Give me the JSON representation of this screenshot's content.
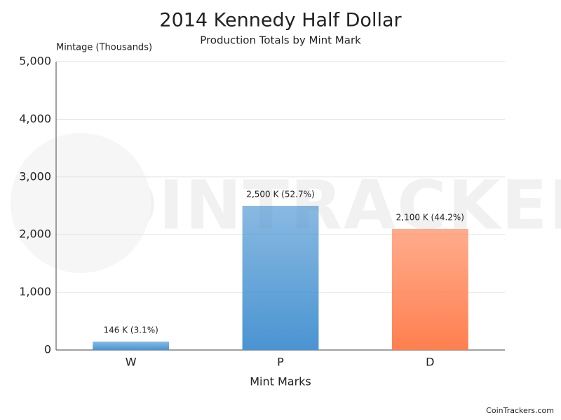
{
  "chart_data": {
    "type": "bar",
    "title": "2014 Kennedy Half Dollar",
    "subtitle": "Production Totals by Mint Mark",
    "y_label": "Mintage (Thousands)",
    "x_label": "Mint Marks",
    "categories": [
      "W",
      "P",
      "D"
    ],
    "values": [
      146,
      2500,
      2100
    ],
    "value_labels": [
      "146 K (3.1%)",
      "2,500 K (52.7%)",
      "2,100 K (44.2%)"
    ],
    "colors": [
      "#4a94d2",
      "#4a94d2",
      "#ff7f4f"
    ],
    "ylim": [
      0,
      5000
    ],
    "yticks": [
      0,
      {
        "value": 1000,
        "label": "1,000"
      },
      {
        "value": 2000,
        "label": "2,000"
      },
      {
        "value": 3000,
        "label": "3,000"
      },
      {
        "value": 4000,
        "label": "4,000"
      },
      {
        "value": 5000,
        "label": "5,000"
      }
    ],
    "grid": true,
    "watermark": "COINTRACKERS",
    "credit": "CoinTrackers.com"
  }
}
